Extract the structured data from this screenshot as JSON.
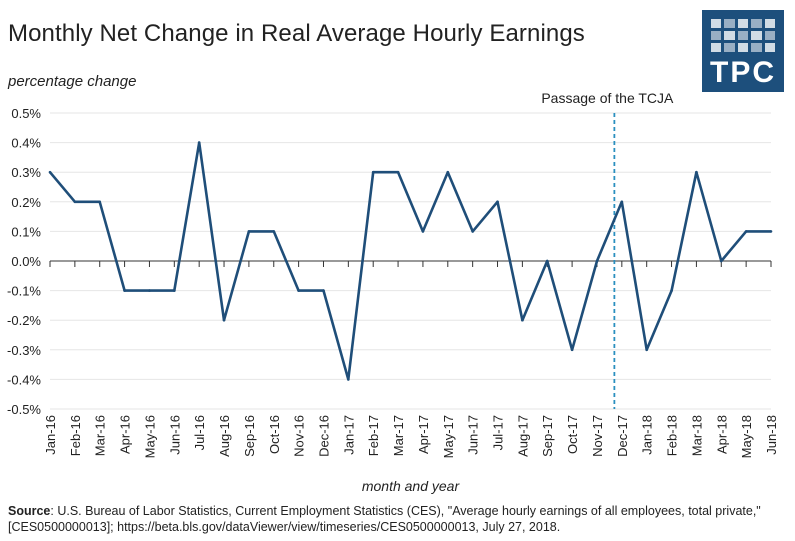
{
  "header": {
    "title": "Monthly Net Change in Real Average Hourly Earnings",
    "logo_text": "TPC"
  },
  "source": {
    "label": "Source",
    "text": ": U.S. Bureau of Labor Statistics, Current Employment Statistics (CES), \"Average hourly earnings of all employees, total private,\" [CES0500000013]; https://beta.bls.gov/dataViewer/view/timeseries/CES0500000013, July 27, 2018."
  },
  "colors": {
    "line": "#1f4e79",
    "marker": "#2a8fbf",
    "grid": "#e6e6e6",
    "axis": "#333333",
    "logo": "#1d4f7c"
  },
  "chart_data": {
    "type": "line",
    "title": "Monthly Net Change in Real Average Hourly Earnings",
    "ylabel": "percentage change",
    "xlabel": "month and year",
    "ylim": [
      -0.5,
      0.5
    ],
    "yticks": [
      0.5,
      0.4,
      0.3,
      0.2,
      0.1,
      0.0,
      -0.1,
      -0.2,
      -0.3,
      -0.4,
      -0.5
    ],
    "ytick_labels": [
      "0.5%",
      "0.4%",
      "0.3%",
      "0.2%",
      "0.1%",
      "0.0%",
      "-0.1%",
      "-0.2%",
      "-0.3%",
      "-0.4%",
      "-0.5%"
    ],
    "grid": true,
    "categories": [
      "Jan-16",
      "Feb-16",
      "Mar-16",
      "Apr-16",
      "May-16",
      "Jun-16",
      "Jul-16",
      "Aug-16",
      "Sep-16",
      "Oct-16",
      "Nov-16",
      "Dec-16",
      "Jan-17",
      "Feb-17",
      "Mar-17",
      "Apr-17",
      "May-17",
      "Jun-17",
      "Jul-17",
      "Aug-17",
      "Sep-17",
      "Oct-17",
      "Nov-17",
      "Dec-17",
      "Jan-18",
      "Feb-18",
      "Mar-18",
      "Apr-18",
      "May-18",
      "Jun-18"
    ],
    "series": [
      {
        "name": "Monthly net change",
        "values": [
          0.3,
          0.2,
          0.2,
          -0.1,
          -0.1,
          -0.1,
          0.4,
          -0.2,
          0.1,
          0.1,
          -0.1,
          -0.1,
          -0.4,
          0.3,
          0.3,
          0.1,
          0.3,
          0.1,
          0.2,
          -0.2,
          0.0,
          -0.3,
          0.0,
          0.2,
          -0.3,
          -0.1,
          0.3,
          0.0,
          0.1,
          0.1
        ]
      }
    ],
    "annotations": [
      {
        "text": "Passage of the TCJA",
        "x_position": 22.7,
        "style": "dashed-vertical"
      }
    ]
  }
}
